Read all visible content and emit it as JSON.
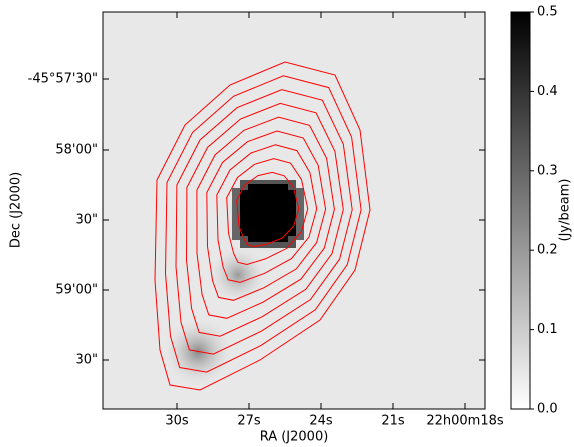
{
  "chart_data": {
    "type": "image",
    "xlabel": "RA (J2000)",
    "ylabel": "Dec (J2000)",
    "xticklabels": [
      "30s",
      "27s",
      "24s",
      "21s",
      "22h00m18s"
    ],
    "yticklabels": [
      "-45°57'30\"",
      "58'00\"",
      "30\"",
      "59'00\"",
      "30\""
    ],
    "colorbar": {
      "label": "(Jy/beam)",
      "lim": [
        0,
        0.5
      ],
      "ticks": [
        {
          "value": 0,
          "label": "0.0"
        },
        {
          "value": 0.1,
          "label": "0.1"
        },
        {
          "value": 0.2,
          "label": "0.2"
        },
        {
          "value": 0.3,
          "label": "0.3"
        },
        {
          "value": 0.4,
          "label": "0.4"
        },
        {
          "value": 0.5,
          "label": "0.5"
        }
      ],
      "colormap": "gray_r"
    },
    "contour_color": "#ff0000"
  }
}
